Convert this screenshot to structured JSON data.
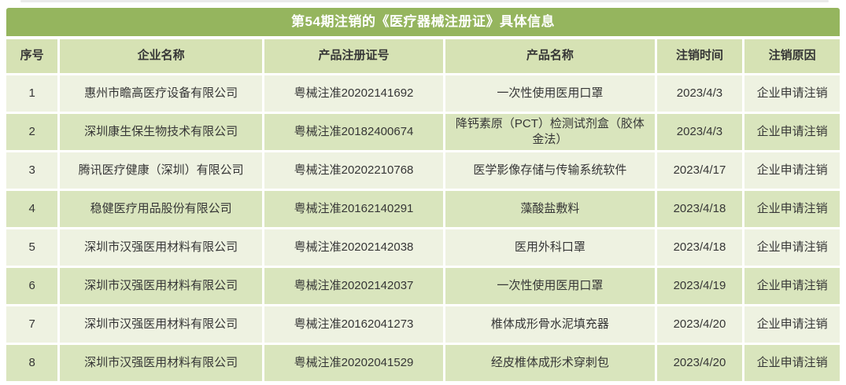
{
  "title": "第54期注销的《医疗器械注册证》具体信息",
  "colors": {
    "page_bg": "#ffffff",
    "title_bg": "#95b55e",
    "title_text": "#ffffff",
    "header_bg": "#d6e2b4",
    "row_odd_bg": "#eef2e1",
    "row_even_bg": "#d9e5bd",
    "text": "#363636",
    "cell_border": "#ffffff"
  },
  "chart_data": {
    "type": "table",
    "title": "第54期注销的《医疗器械注册证》具体信息",
    "columns": [
      "序号",
      "企业名称",
      "产品注册证号",
      "产品名称",
      "注销时间",
      "注销原因"
    ],
    "rows": [
      [
        "1",
        "惠州市瞻高医疗设备有限公司",
        "粤械注准20202141692",
        "一次性使用医用口罩",
        "2023/4/3",
        "企业申请注销"
      ],
      [
        "2",
        "深圳康生保生物技术有限公司",
        "粤械注准20182400674",
        "降钙素原（PCT）检测试剂盒（胶体金法）",
        "2023/4/3",
        "企业申请注销"
      ],
      [
        "3",
        "腾讯医疗健康（深圳）有限公司",
        "粤械注准20202210768",
        "医学影像存储与传输系统软件",
        "2023/4/17",
        "企业申请注销"
      ],
      [
        "4",
        "稳健医疗用品股份有限公司",
        "粤械注准20162140291",
        "藻酸盐敷料",
        "2023/4/18",
        "企业申请注销"
      ],
      [
        "5",
        "深圳市汉强医用材料有限公司",
        "粤械注准20202142038",
        "医用外科口罩",
        "2023/4/18",
        "企业申请注销"
      ],
      [
        "6",
        "深圳市汉强医用材料有限公司",
        "粤械注准20202142037",
        "一次性使用医用口罩",
        "2023/4/19",
        "企业申请注销"
      ],
      [
        "7",
        "深圳市汉强医用材料有限公司",
        "粤械注准20162041273",
        "椎体成形骨水泥填充器",
        "2023/4/20",
        "企业申请注销"
      ],
      [
        "8",
        "深圳市汉强医用材料有限公司",
        "粤械注准20202041529",
        "经皮椎体成形术穿刺包",
        "2023/4/20",
        "企业申请注销"
      ]
    ]
  }
}
